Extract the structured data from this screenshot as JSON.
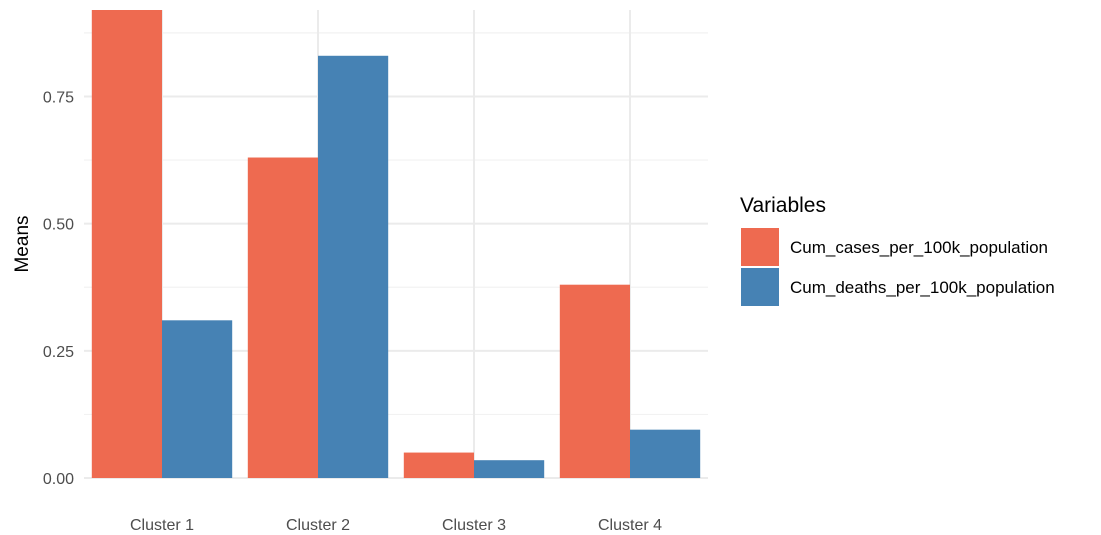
{
  "chart_data": {
    "type": "bar",
    "ylabel": "Means",
    "xlabel": "",
    "categories": [
      "Cluster 1",
      "Cluster 2",
      "Cluster 3",
      "Cluster 4"
    ],
    "series": [
      {
        "name": "Cum_cases_per_100k_population",
        "color": "#EE6A50",
        "values": [
          0.92,
          0.63,
          0.05,
          0.38
        ]
      },
      {
        "name": "Cum_deaths_per_100k_population",
        "color": "#4682B4",
        "values": [
          0.31,
          0.83,
          0.035,
          0.095
        ]
      }
    ],
    "ylim": [
      0,
      0.92
    ],
    "yticks": [
      0,
      0.25,
      0.5,
      0.75
    ],
    "ytick_labels": [
      "0.00",
      "0.25",
      "0.50",
      "0.75"
    ],
    "grid": true,
    "legend": {
      "title": "Variables",
      "position": "right"
    }
  }
}
